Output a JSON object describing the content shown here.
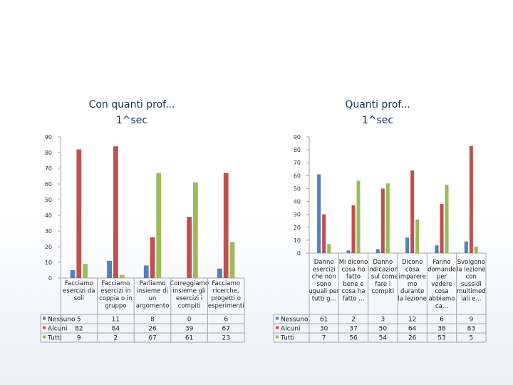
{
  "charts": [
    {
      "title": "Con quanti prof...\n1^sec",
      "chart_data": {
        "type": "bar",
        "title": "Con quanti prof...\n1^sec",
        "categories": [
          "Facciamo esercizi da soli",
          "Facciamo esercizi in coppia o in gruppo",
          "Parliamo insieme di un argomento",
          "Correggiamo insieme gli esercizi i compiti",
          "Facciamo ricerche, progetti o esperimenti"
        ],
        "category_lines": [
          [
            "Facciamo",
            "esercizi da",
            "soli"
          ],
          [
            "Facciamo",
            "esercizi in",
            "coppia o in",
            "gruppo"
          ],
          [
            "Parliamo",
            "insieme di",
            "un",
            "argomento"
          ],
          [
            "Correggiamo",
            "insieme gli",
            "esercizi i",
            "compiti"
          ],
          [
            "Facciamo",
            "ricerche,",
            "progetti o",
            "esperimenti"
          ]
        ],
        "series": [
          {
            "name": "Nessuno",
            "color": "#4f81bd",
            "values": [
              5,
              11,
              8,
              0,
              6
            ]
          },
          {
            "name": "Alcuni",
            "color": "#c0504d",
            "values": [
              82,
              84,
              26,
              39,
              67
            ]
          },
          {
            "name": "Tutti",
            "color": "#9bbb59",
            "values": [
              9,
              2,
              67,
              61,
              23
            ]
          }
        ],
        "ylim": [
          0,
          90
        ],
        "yticks": [
          0,
          10,
          20,
          30,
          40,
          50,
          60,
          70,
          80,
          90
        ],
        "grid": false,
        "legend": "data-table"
      }
    },
    {
      "title": "Quanti prof...\n1^sec",
      "chart_data": {
        "type": "bar",
        "title": "Quanti prof...\n1^sec",
        "categories": [
          "Danno esercizi che non sono uguali per tutti g...",
          "Mi dicono cosa ho fatto bene e cosa ha fatto ...",
          "Danno indicazioni sul come fare i compiti",
          "Dicono cosa imparere mo durante la lezione",
          "Fanno domande per vedere cosa abbiamo ca...",
          "Svolgono la lezione con sussidi multimediali e..."
        ],
        "category_lines": [
          [
            "Danno",
            "esercizi",
            "che non",
            "sono",
            "uguali per",
            "tutti g..."
          ],
          [
            "Mi dicono",
            "cosa ho",
            "fatto",
            "bene e",
            "cosa ha",
            "fatto ..."
          ],
          [
            "Danno",
            "indicazion",
            "i sul come",
            "fare i",
            "compiti"
          ],
          [
            "Dicono",
            "cosa",
            "imparere",
            "mo",
            "durante",
            "la lezione"
          ],
          [
            "Fanno",
            "domande",
            "per",
            "vedere",
            "cosa",
            "abbiamo",
            "ca..."
          ],
          [
            "Svolgono",
            "la lezione",
            "con",
            "sussidi",
            "multimed",
            "iali e..."
          ]
        ],
        "series": [
          {
            "name": "Nessuno",
            "color": "#4f81bd",
            "values": [
              61,
              2,
              3,
              12,
              6,
              9
            ]
          },
          {
            "name": "Alcuni",
            "color": "#c0504d",
            "values": [
              30,
              37,
              50,
              64,
              38,
              83
            ]
          },
          {
            "name": "Tutti",
            "color": "#9bbb59",
            "values": [
              7,
              56,
              54,
              26,
              53,
              5
            ]
          }
        ],
        "ylim": [
          0,
          90
        ],
        "yticks": [
          0,
          10,
          20,
          30,
          40,
          50,
          60,
          70,
          80,
          90
        ],
        "grid": false,
        "legend": "data-table"
      }
    }
  ]
}
